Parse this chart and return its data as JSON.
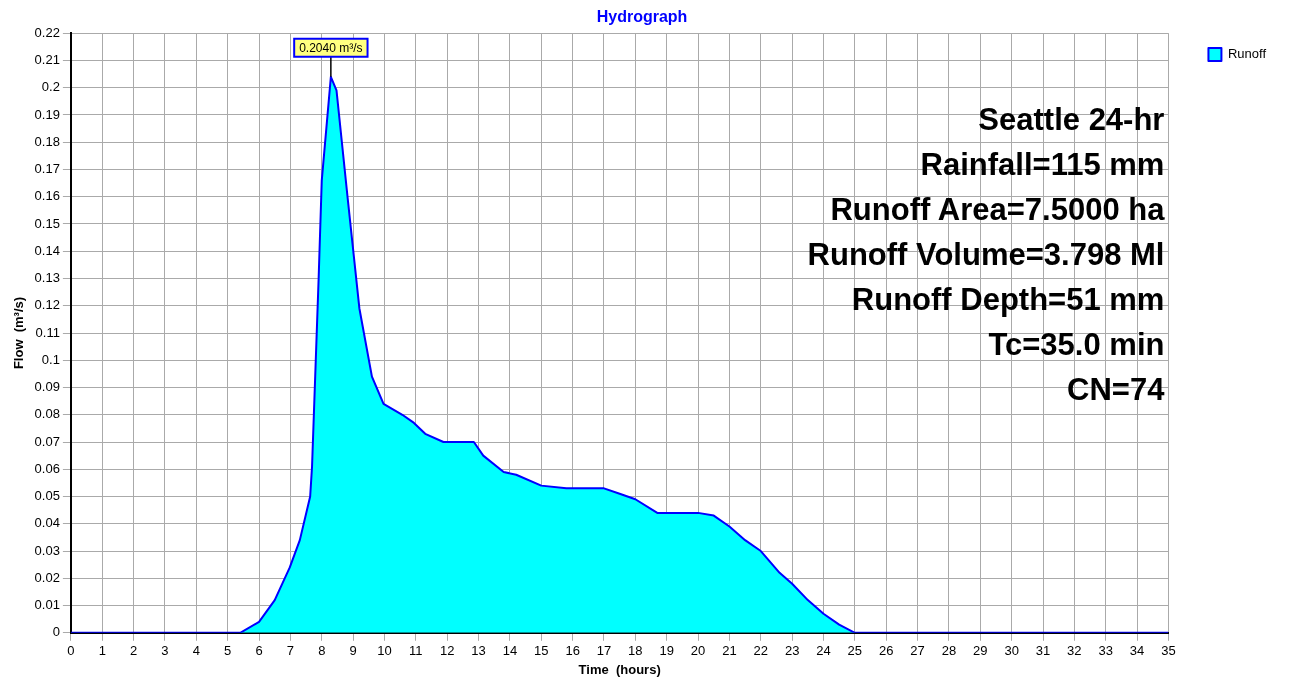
{
  "chart_data": {
    "type": "area",
    "title": "Hydrograph",
    "xlabel": "Time  (hours)",
    "ylabel": "Flow  (m³/s)",
    "x": [
      0,
      5.4,
      6,
      6.5,
      6.98,
      7.3,
      7.63,
      7.69,
      7.9,
      8.0,
      8.29,
      8.47,
      8.83,
      9.2,
      9.6,
      9.97,
      10.57,
      10.94,
      11.3,
      11.88,
      12.85,
      13.15,
      13.8,
      14.2,
      15.0,
      15.8,
      16.4,
      17.0,
      17.5,
      18.0,
      18.7,
      20.0,
      20.5,
      21.0,
      21.5,
      22.0,
      22.6,
      23.0,
      23.5,
      24.0,
      24.5,
      25.0,
      35
    ],
    "series": [
      {
        "name": "Runoff",
        "color": "#00ffff",
        "values": [
          0,
          0,
          0.004,
          0.012,
          0.024,
          0.034,
          0.05,
          0.061,
          0.13,
          0.166,
          0.204,
          0.199,
          0.159,
          0.119,
          0.094,
          0.084,
          0.08,
          0.077,
          0.073,
          0.07,
          0.07,
          0.065,
          0.059,
          0.058,
          0.054,
          0.053,
          0.053,
          0.053,
          0.051,
          0.049,
          0.044,
          0.044,
          0.043,
          0.039,
          0.034,
          0.03,
          0.022,
          0.018,
          0.012,
          0.007,
          0.003,
          0,
          0
        ]
      }
    ],
    "xlim": [
      0,
      35
    ],
    "xticks": [
      0,
      1,
      2,
      3,
      4,
      5,
      6,
      7,
      8,
      9,
      10,
      11,
      12,
      13,
      14,
      15,
      16,
      17,
      18,
      19,
      20,
      21,
      22,
      23,
      24,
      25,
      26,
      27,
      28,
      29,
      30,
      31,
      32,
      33,
      34,
      35
    ],
    "ylim": [
      0,
      0.22
    ],
    "yticks": [
      0,
      0.01,
      0.02,
      0.03,
      0.04,
      0.05,
      0.06,
      0.07,
      0.08,
      0.09,
      0.1,
      0.11,
      0.12,
      0.13,
      0.14,
      0.15,
      0.16,
      0.17,
      0.18,
      0.19,
      0.2,
      0.21,
      0.22
    ],
    "grid": true,
    "legend": "top right",
    "marker": "none",
    "annotations": [
      {
        "text": "0.2040 m³/s",
        "x": 8.29,
        "y": 0.204
      },
      "Seattle 24-hr",
      "Rainfall=115 mm",
      "Runoff Area=7.5000 ha",
      "Runoff Volume=3.798 Ml",
      "Runoff Depth=51 mm",
      "Tc=35.0 min",
      "CN=74"
    ]
  }
}
